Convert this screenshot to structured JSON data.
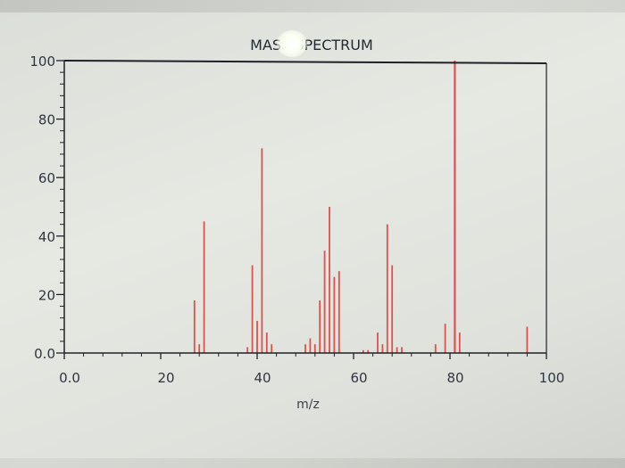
{
  "chart_data": {
    "type": "bar",
    "title": "MASS SPECTRUM",
    "xlabel": "m/z",
    "ylabel": "",
    "xlim": [
      0,
      100
    ],
    "ylim": [
      0,
      100
    ],
    "x_ticks": [
      "0.0",
      "20",
      "40",
      "60",
      "80",
      "100"
    ],
    "y_ticks": [
      "0.0",
      "20",
      "40",
      "60",
      "80",
      "100"
    ],
    "grid": false,
    "bar_color": "#d9534f",
    "x": [
      27,
      28,
      29,
      38,
      39,
      40,
      41,
      42,
      43,
      50,
      51,
      52,
      53,
      54,
      55,
      56,
      57,
      62,
      63,
      65,
      66,
      67,
      68,
      69,
      70,
      77,
      79,
      81,
      82,
      96
    ],
    "values": [
      18,
      3,
      45,
      2,
      30,
      11,
      70,
      7,
      3,
      3,
      5,
      3,
      18,
      35,
      50,
      26,
      28,
      1,
      1,
      7,
      3,
      44,
      30,
      2,
      2,
      3,
      10,
      100,
      7,
      9
    ]
  }
}
